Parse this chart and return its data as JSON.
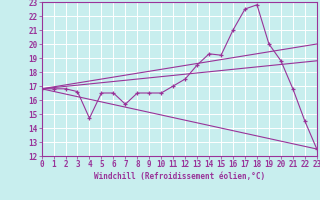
{
  "xlabel": "Windchill (Refroidissement éolien,°C)",
  "bg_color": "#c8eeee",
  "grid_color": "#b8d8d8",
  "line_color": "#993399",
  "xlim": [
    0,
    23
  ],
  "ylim": [
    12,
    23
  ],
  "xticks": [
    0,
    1,
    2,
    3,
    4,
    5,
    6,
    7,
    8,
    9,
    10,
    11,
    12,
    13,
    14,
    15,
    16,
    17,
    18,
    19,
    20,
    21,
    22,
    23
  ],
  "yticks": [
    12,
    13,
    14,
    15,
    16,
    17,
    18,
    19,
    20,
    21,
    22,
    23
  ],
  "line1_x": [
    0,
    1,
    2,
    3,
    4,
    5,
    6,
    7,
    8,
    9,
    10,
    11,
    12,
    13,
    14,
    15,
    16,
    17,
    18,
    19,
    20,
    21,
    22,
    23
  ],
  "line1_y": [
    16.8,
    16.8,
    16.8,
    16.6,
    14.7,
    16.5,
    16.5,
    15.7,
    16.5,
    16.5,
    16.5,
    17.0,
    17.5,
    18.5,
    19.3,
    19.2,
    21.0,
    22.5,
    22.8,
    20.0,
    18.8,
    16.8,
    14.5,
    12.5
  ],
  "line2_x": [
    0,
    23
  ],
  "line2_y": [
    16.8,
    20.0
  ],
  "line3_x": [
    0,
    23
  ],
  "line3_y": [
    16.8,
    18.8
  ],
  "line4_x": [
    0,
    23
  ],
  "line4_y": [
    16.8,
    12.5
  ],
  "tick_fontsize": 5.5,
  "xlabel_fontsize": 5.5
}
